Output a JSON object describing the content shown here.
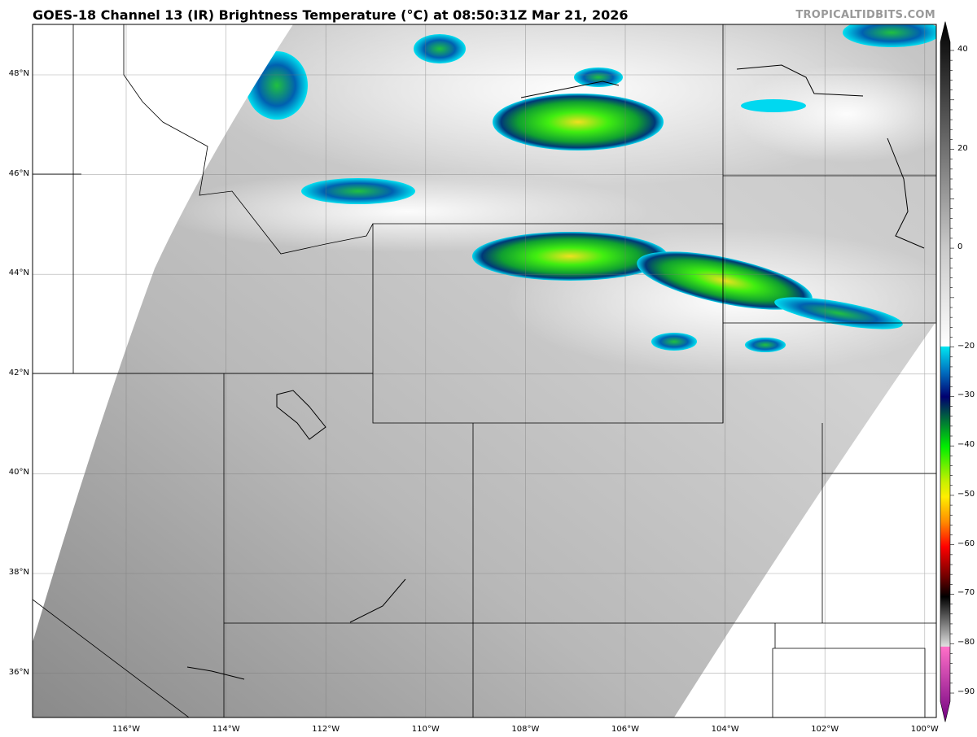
{
  "title": "GOES-18 Channel 13 (IR) Brightness Temperature (°C) at 08:50:31Z Mar 21, 2026",
  "watermark": "TROPICALTIDBITS.COM",
  "map": {
    "lat_labels": [
      {
        "lat": 48,
        "text": "48°N"
      },
      {
        "lat": 46,
        "text": "46°N"
      },
      {
        "lat": 44,
        "text": "44°N"
      },
      {
        "lat": 42,
        "text": "42°N"
      },
      {
        "lat": 40,
        "text": "40°N"
      },
      {
        "lat": 38,
        "text": "38°N"
      },
      {
        "lat": 36,
        "text": "36°N"
      }
    ],
    "lon_labels": [
      {
        "lon": -116,
        "text": "116°W"
      },
      {
        "lon": -114,
        "text": "114°W"
      },
      {
        "lon": -112,
        "text": "112°W"
      },
      {
        "lon": -110,
        "text": "110°W"
      },
      {
        "lon": -108,
        "text": "108°W"
      },
      {
        "lon": -106,
        "text": "106°W"
      },
      {
        "lon": -104,
        "text": "104°W"
      },
      {
        "lon": -102,
        "text": "102°W"
      },
      {
        "lon": -100,
        "text": "100°W"
      }
    ]
  },
  "colorbar": {
    "range": [
      -95,
      45
    ],
    "ticks": [
      "40",
      "20",
      "0",
      "−20",
      "−30",
      "−40",
      "−50",
      "−60",
      "−70",
      "−80",
      "−90"
    ],
    "tick_values": [
      40,
      20,
      0,
      -20,
      -30,
      -40,
      -50,
      -60,
      -70,
      -80,
      -90
    ],
    "stops": [
      {
        "v": 45,
        "c": "#000000"
      },
      {
        "v": 20,
        "c": "#6e6e6e"
      },
      {
        "v": 0,
        "c": "#c8c8c8"
      },
      {
        "v": -19.9,
        "c": "#ffffff"
      },
      {
        "v": -20,
        "c": "#00e5f0"
      },
      {
        "v": -25,
        "c": "#0070c0"
      },
      {
        "v": -30,
        "c": "#000070"
      },
      {
        "v": -34,
        "c": "#006040"
      },
      {
        "v": -40,
        "c": "#00ee00"
      },
      {
        "v": -47,
        "c": "#c8f000"
      },
      {
        "v": -50,
        "c": "#ffee00"
      },
      {
        "v": -55,
        "c": "#ff8c00"
      },
      {
        "v": -60,
        "c": "#ff0000"
      },
      {
        "v": -66,
        "c": "#700000"
      },
      {
        "v": -70,
        "c": "#000000"
      },
      {
        "v": -79.9,
        "c": "#e0e0e0"
      },
      {
        "v": -80,
        "c": "#ff70c8"
      },
      {
        "v": -95,
        "c": "#700080"
      }
    ]
  }
}
